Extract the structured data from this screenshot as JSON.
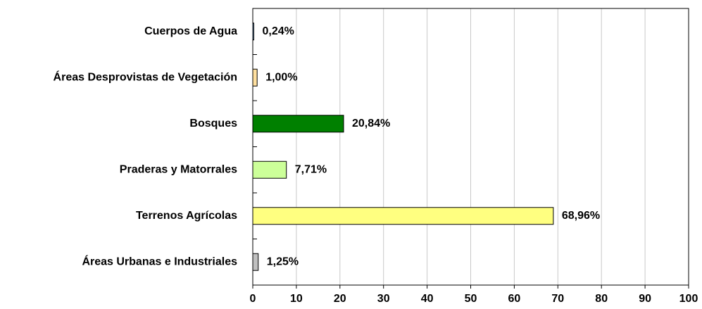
{
  "chart_data": {
    "type": "barh",
    "categories": [
      "Cuerpos de Agua",
      "Áreas Desprovistas de Vegetación",
      "Bosques",
      "Praderas y Matorrales",
      "Terrenos Agrícolas",
      "Áreas Urbanas e Industriales"
    ],
    "values": [
      0.24,
      1.0,
      20.84,
      7.71,
      68.96,
      1.25
    ],
    "value_labels": [
      "0,24%",
      "1,00%",
      "20,84%",
      "7,71%",
      "68,96%",
      "1,25%"
    ],
    "colors": [
      "#99ccff",
      "#ffe0a0",
      "#008000",
      "#ccff99",
      "#ffff80",
      "#c0c0c0"
    ],
    "xlim": [
      0,
      100
    ],
    "xticks": [
      0,
      10,
      20,
      30,
      40,
      50,
      60,
      70,
      80,
      90,
      100
    ],
    "grid": true
  }
}
